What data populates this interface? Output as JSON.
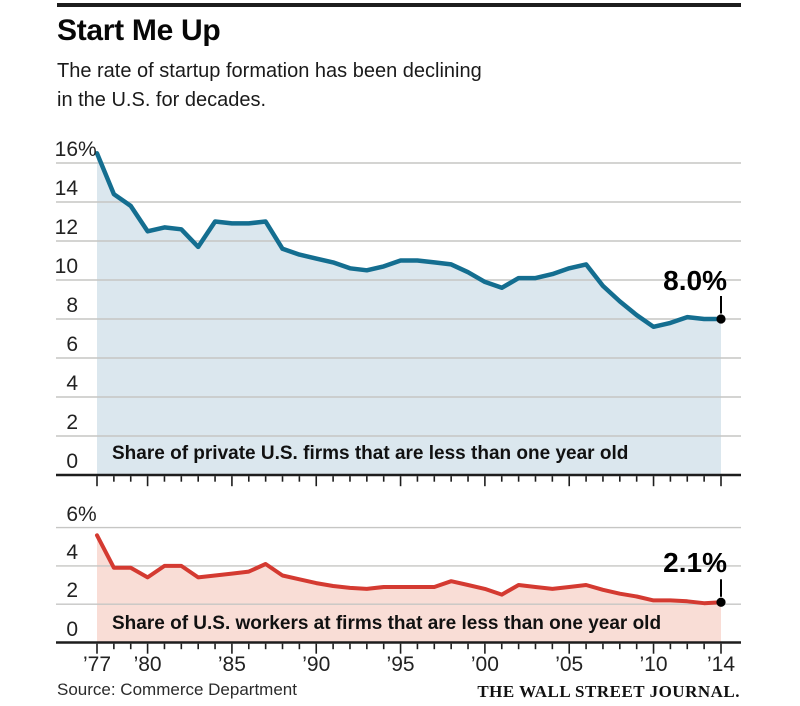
{
  "header": {
    "title": "Start Me Up",
    "subtitle_line1": "The rate of startup formation has been declining",
    "subtitle_line2": "in the U.S. for decades."
  },
  "footer": {
    "source": "Source: Commerce Department",
    "brand": "THE WALL STREET JOURNAL."
  },
  "colors": {
    "top_line": "#146e90",
    "top_fill": "#dbe7ee",
    "bottom_line": "#d43a31",
    "bottom_fill": "#f9ddd6",
    "grid": "#c6c6c4",
    "axis": "#1d1d1d",
    "marker": "#000000",
    "rule": "#1d1d1d"
  },
  "chart_data": [
    {
      "type": "area",
      "caption": "Share of private U.S. firms that are less than one year old",
      "end_label": "8.0%",
      "end_value": 8.0,
      "ylim": [
        0,
        16
      ],
      "grid": true,
      "y_ticks": [
        16,
        14,
        12,
        10,
        8,
        6,
        4,
        2,
        0
      ],
      "y_tick_labels": [
        "16%",
        "14",
        "12",
        "10",
        "8",
        "6",
        "4",
        "2",
        "0"
      ],
      "x_range": [
        1977,
        2014
      ],
      "x_major_ticks": [
        1977,
        1980,
        1985,
        1990,
        1995,
        2000,
        2005,
        2010,
        2014
      ],
      "x_major_labels": [
        "’77",
        "’80",
        "’85",
        "’90",
        "’95",
        "’00",
        "’05",
        "’10",
        "’14"
      ],
      "show_x_labels": false,
      "years": [
        1977,
        1978,
        1979,
        1980,
        1981,
        1982,
        1983,
        1984,
        1985,
        1986,
        1987,
        1988,
        1989,
        1990,
        1991,
        1992,
        1993,
        1994,
        1995,
        1996,
        1997,
        1998,
        1999,
        2000,
        2001,
        2002,
        2003,
        2004,
        2005,
        2006,
        2007,
        2008,
        2009,
        2010,
        2011,
        2012,
        2013,
        2014
      ],
      "values": [
        16.5,
        14.4,
        13.8,
        12.5,
        12.7,
        12.6,
        11.7,
        13.0,
        12.9,
        12.9,
        13.0,
        11.6,
        11.3,
        11.1,
        10.9,
        10.6,
        10.5,
        10.7,
        11.0,
        11.0,
        10.9,
        10.8,
        10.4,
        9.9,
        9.6,
        10.1,
        10.1,
        10.3,
        10.6,
        10.8,
        9.7,
        8.9,
        8.2,
        7.6,
        7.8,
        8.1,
        8.0,
        8.0
      ]
    },
    {
      "type": "area",
      "caption": "Share of U.S. workers at firms that are less than one year old",
      "end_label": "2.1%",
      "end_value": 2.1,
      "ylim": [
        0,
        6
      ],
      "grid": true,
      "y_ticks": [
        6,
        4,
        2,
        0
      ],
      "y_tick_labels": [
        "6%",
        "4",
        "2",
        "0"
      ],
      "x_range": [
        1977,
        2014
      ],
      "x_major_ticks": [
        1977,
        1980,
        1985,
        1990,
        1995,
        2000,
        2005,
        2010,
        2014
      ],
      "x_major_labels": [
        "’77",
        "’80",
        "’85",
        "’90",
        "’95",
        "’00",
        "’05",
        "’10",
        "’14"
      ],
      "show_x_labels": true,
      "years": [
        1977,
        1978,
        1979,
        1980,
        1981,
        1982,
        1983,
        1984,
        1985,
        1986,
        1987,
        1988,
        1989,
        1990,
        1991,
        1992,
        1993,
        1994,
        1995,
        1996,
        1997,
        1998,
        1999,
        2000,
        2001,
        2002,
        2003,
        2004,
        2005,
        2006,
        2007,
        2008,
        2009,
        2010,
        2011,
        2012,
        2013,
        2014
      ],
      "values": [
        5.6,
        3.9,
        3.9,
        3.4,
        4.0,
        4.0,
        3.4,
        3.5,
        3.6,
        3.7,
        4.1,
        3.5,
        3.3,
        3.1,
        2.95,
        2.85,
        2.8,
        2.9,
        2.9,
        2.9,
        2.9,
        3.2,
        3.0,
        2.8,
        2.5,
        3.0,
        2.9,
        2.8,
        2.9,
        3.0,
        2.75,
        2.55,
        2.4,
        2.2,
        2.2,
        2.15,
        2.05,
        2.1
      ]
    }
  ]
}
